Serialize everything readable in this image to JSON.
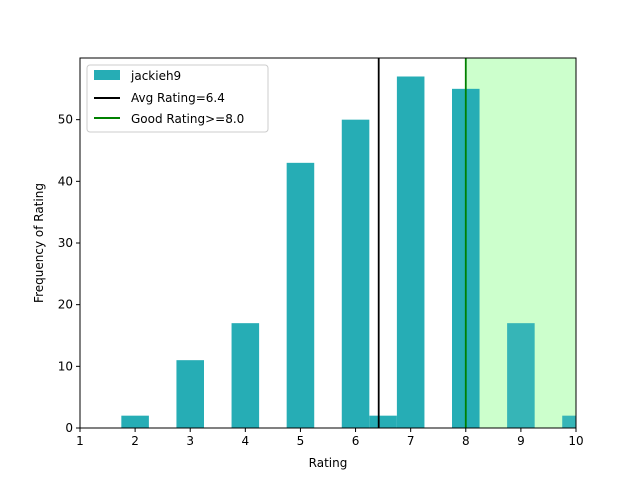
{
  "chart_data": {
    "type": "bar",
    "title": "",
    "xlabel": "Rating",
    "ylabel": "Frequency of Rating",
    "xlim": [
      1,
      10
    ],
    "ylim": [
      0,
      60
    ],
    "xticks": [
      1,
      2,
      3,
      4,
      5,
      6,
      7,
      8,
      9,
      10
    ],
    "yticks": [
      0,
      10,
      20,
      30,
      40,
      50
    ],
    "bar_width": 0.5,
    "series": [
      {
        "name": "jackieh9",
        "color": "#26adb5",
        "bars": [
          {
            "x": 2.0,
            "y": 2
          },
          {
            "x": 3.0,
            "y": 11
          },
          {
            "x": 4.0,
            "y": 17
          },
          {
            "x": 5.0,
            "y": 43
          },
          {
            "x": 6.0,
            "y": 50
          },
          {
            "x": 6.5,
            "y": 2
          },
          {
            "x": 7.0,
            "y": 57
          },
          {
            "x": 8.0,
            "y": 55
          },
          {
            "x": 9.0,
            "y": 17
          },
          {
            "x": 10.0,
            "y": 2
          }
        ]
      }
    ],
    "reference_lines": [
      {
        "name": "Avg Rating=6.4",
        "x": 6.42,
        "color": "#000000"
      },
      {
        "name": "Good Rating>=8.0",
        "x": 8.0,
        "color": "#008000"
      }
    ],
    "shaded_region": {
      "x_from": 8.0,
      "x_to": 10.0,
      "color": "#ccffcc"
    },
    "grid": false,
    "legend_position": "top-left"
  }
}
